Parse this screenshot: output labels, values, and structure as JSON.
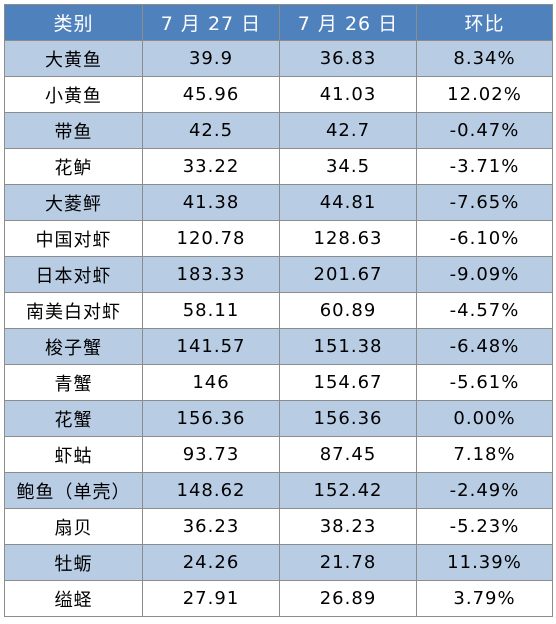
{
  "table": {
    "headers": [
      "类别",
      "7 月 27 日",
      "7 月 26 日",
      "环比"
    ],
    "rows": [
      {
        "name": "大黄鱼",
        "d27": "39.9",
        "d26": "36.83",
        "change": "8.34%"
      },
      {
        "name": "小黄鱼",
        "d27": "45.96",
        "d26": "41.03",
        "change": "12.02%"
      },
      {
        "name": "带鱼",
        "d27": "42.5",
        "d26": "42.7",
        "change": "-0.47%"
      },
      {
        "name": "花鲈",
        "d27": "33.22",
        "d26": "34.5",
        "change": "-3.71%"
      },
      {
        "name": "大菱鲆",
        "d27": "41.38",
        "d26": "44.81",
        "change": "-7.65%"
      },
      {
        "name": "中国对虾",
        "d27": "120.78",
        "d26": "128.63",
        "change": "-6.10%"
      },
      {
        "name": "日本对虾",
        "d27": "183.33",
        "d26": "201.67",
        "change": "-9.09%"
      },
      {
        "name": "南美白对虾",
        "d27": "58.11",
        "d26": "60.89",
        "change": "-4.57%"
      },
      {
        "name": "梭子蟹",
        "d27": "141.57",
        "d26": "151.38",
        "change": "-6.48%"
      },
      {
        "name": "青蟹",
        "d27": "146",
        "d26": "154.67",
        "change": "-5.61%"
      },
      {
        "name": "花蟹",
        "d27": "156.36",
        "d26": "156.36",
        "change": "0.00%"
      },
      {
        "name": "虾蛄",
        "d27": "93.73",
        "d26": "87.45",
        "change": "7.18%"
      },
      {
        "name": "鲍鱼（单壳）",
        "d27": "148.62",
        "d26": "152.42",
        "change": "-2.49%"
      },
      {
        "name": "扇贝",
        "d27": "36.23",
        "d26": "38.23",
        "change": "-5.23%"
      },
      {
        "name": "牡蛎",
        "d27": "24.26",
        "d26": "21.78",
        "change": "11.39%"
      },
      {
        "name": "缢蛏",
        "d27": "27.91",
        "d26": "26.89",
        "change": "3.79%"
      }
    ]
  },
  "colors": {
    "header_bg": "#4f81bd",
    "header_text": "#ffffff",
    "shaded_row_bg": "#b8cce4",
    "plain_row_bg": "#ffffff",
    "border": "#8c8c8c"
  }
}
